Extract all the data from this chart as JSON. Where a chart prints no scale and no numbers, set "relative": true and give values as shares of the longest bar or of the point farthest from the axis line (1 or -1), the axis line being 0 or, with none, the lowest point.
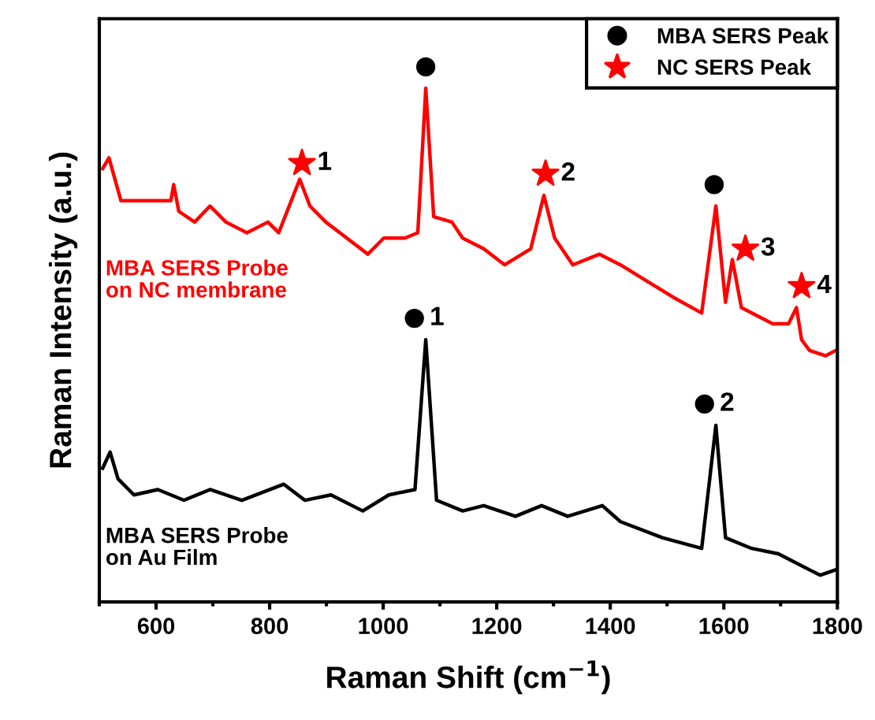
{
  "chart_data": {
    "type": "line",
    "relative": true,
    "xlabel": "Raman Shift (cm$^{−1}$)",
    "ylabel": "Raman Intensity (a.u.)",
    "xlim": [
      500,
      1800
    ],
    "xticks": [
      600,
      800,
      1000,
      1200,
      1400,
      1600,
      1800
    ],
    "grid": false,
    "legend": "top right",
    "line_style": "solid",
    "series": [
      {
        "name": "MBA SERS Probe\non NC membrane",
        "color": "#ff0000",
        "marker": "none",
        "x": [
          506,
          517,
          538,
          584,
          626,
          631,
          640,
          668,
          695,
          723,
          760,
          797,
          816,
          853,
          871,
          899,
          936,
          973,
          1001,
          1038,
          1061,
          1075,
          1089,
          1121,
          1140,
          1177,
          1214,
          1260,
          1283,
          1302,
          1334,
          1381,
          1418,
          1464,
          1510,
          1561,
          1586,
          1603,
          1615,
          1631,
          1686,
          1714,
          1728,
          1737,
          1751,
          1779,
          1797
        ],
        "values": [
          0.81,
          0.83,
          0.75,
          0.75,
          0.75,
          0.78,
          0.73,
          0.71,
          0.74,
          0.71,
          0.69,
          0.71,
          0.69,
          0.79,
          0.74,
          0.71,
          0.68,
          0.65,
          0.68,
          0.68,
          0.69,
          0.96,
          0.72,
          0.71,
          0.68,
          0.66,
          0.63,
          0.66,
          0.76,
          0.68,
          0.63,
          0.65,
          0.63,
          0.6,
          0.57,
          0.54,
          0.74,
          0.56,
          0.64,
          0.55,
          0.52,
          0.52,
          0.55,
          0.49,
          0.47,
          0.46,
          0.47
        ]
      },
      {
        "name": "MBA SERS Probe\non Au Film",
        "color": "#000000",
        "marker": "none",
        "x": [
          506,
          519,
          533,
          561,
          603,
          649,
          695,
          751,
          825,
          862,
          908,
          964,
          1010,
          1056,
          1075,
          1094,
          1140,
          1177,
          1233,
          1279,
          1325,
          1386,
          1418,
          1492,
          1561,
          1586,
          1603,
          1649,
          1696,
          1751,
          1770,
          1797
        ],
        "values": [
          0.25,
          0.28,
          0.23,
          0.2,
          0.21,
          0.19,
          0.21,
          0.19,
          0.22,
          0.19,
          0.2,
          0.17,
          0.2,
          0.21,
          0.49,
          0.19,
          0.17,
          0.18,
          0.16,
          0.18,
          0.16,
          0.18,
          0.15,
          0.12,
          0.1,
          0.33,
          0.12,
          0.1,
          0.09,
          0.06,
          0.05,
          0.06
        ]
      },
      {
        "name": "MBA SERS Peak",
        "color": "#000000",
        "type": "scatter",
        "marker": "circle",
        "x": [
          1075,
          1583,
          1055,
          1566
        ],
        "values": [
          1.0,
          0.78,
          0.53,
          0.37
        ]
      },
      {
        "name": "NC SERS Peak",
        "color": "#ff0000",
        "type": "scatter",
        "marker": "star",
        "x": [
          857,
          1286,
          1638,
          1737
        ],
        "values": [
          0.82,
          0.8,
          0.66,
          0.59
        ]
      }
    ],
    "annotations": [
      {
        "text": "1",
        "x": 857,
        "y": 0.82
      },
      {
        "text": "2",
        "x": 1286,
        "y": 0.8
      },
      {
        "text": "3",
        "x": 1638,
        "y": 0.66
      },
      {
        "text": "4",
        "x": 1737,
        "y": 0.59
      },
      {
        "text": "1",
        "x": 1055,
        "y": 0.53
      },
      {
        "text": "2",
        "x": 1566,
        "y": 0.37
      }
    ]
  }
}
